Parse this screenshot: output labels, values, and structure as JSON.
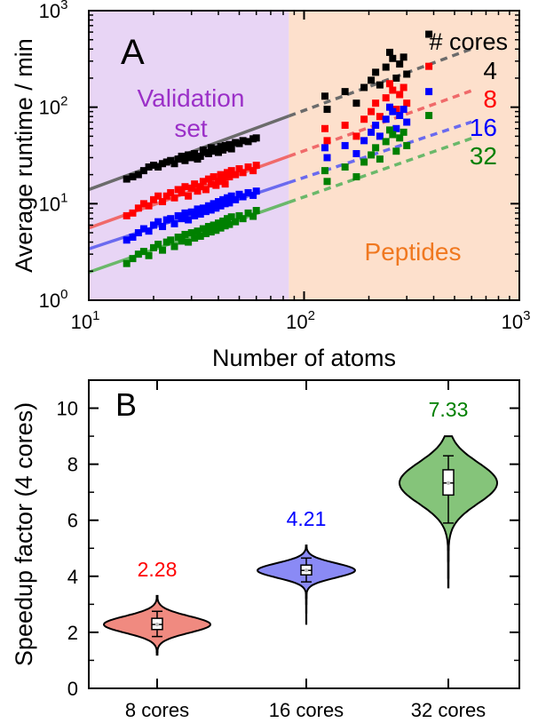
{
  "chart_data": [
    {
      "type": "scatter",
      "panel_label": "A",
      "xlabel": "Number of atoms",
      "ylabel": "Average runtime / min",
      "xscale": "log",
      "yscale": "log",
      "xlim": [
        10,
        1000
      ],
      "ylim": [
        1,
        1000
      ],
      "x_ticks": [
        {
          "label": "10",
          "sup": "1",
          "value": 10
        },
        {
          "label": "10",
          "sup": "2",
          "value": 100
        },
        {
          "label": "10",
          "sup": "3",
          "value": 1000
        }
      ],
      "y_ticks": [
        {
          "label": "10",
          "sup": "0",
          "value": 1
        },
        {
          "label": "10",
          "sup": "1",
          "value": 10
        },
        {
          "label": "10",
          "sup": "2",
          "value": 100
        },
        {
          "label": "10",
          "sup": "3",
          "value": 1000
        }
      ],
      "regions": [
        {
          "label_lines": [
            "Validation",
            "set"
          ],
          "x_from": 10,
          "x_to": 85,
          "color": "#e8d5f5",
          "label_color": "#9b30c8"
        },
        {
          "label_lines": [
            "Peptides"
          ],
          "x_from": 85,
          "x_to": 1000,
          "color": "#fde0cc",
          "label_color": "#f07820"
        }
      ],
      "legend_title": "# cores",
      "legend_position": "top-right",
      "fit_break_x": 85,
      "series": [
        {
          "name": "4",
          "color": "#000000",
          "line_color": "#6b6b6b",
          "fit": {
            "a": 14.0,
            "b": 0.82
          },
          "validation_points": [
            [
              15,
              18
            ],
            [
              16,
              19
            ],
            [
              17,
              20
            ],
            [
              18,
              22
            ],
            [
              19,
              24
            ],
            [
              20,
              25
            ],
            [
              21,
              24
            ],
            [
              22,
              26
            ],
            [
              23,
              27
            ],
            [
              24,
              28
            ],
            [
              25,
              26
            ],
            [
              26,
              29
            ],
            [
              27,
              31
            ],
            [
              28,
              28
            ],
            [
              29,
              32
            ],
            [
              30,
              30
            ],
            [
              31,
              33
            ],
            [
              32,
              29
            ],
            [
              33,
              31
            ],
            [
              34,
              36
            ],
            [
              35,
              34
            ],
            [
              36,
              33
            ],
            [
              37,
              38
            ],
            [
              38,
              35
            ],
            [
              39,
              37
            ],
            [
              40,
              34
            ],
            [
              41,
              39
            ],
            [
              42,
              36
            ],
            [
              43,
              40
            ],
            [
              44,
              38
            ],
            [
              45,
              41
            ],
            [
              46,
              37
            ],
            [
              48,
              43
            ],
            [
              50,
              42
            ],
            [
              52,
              45
            ],
            [
              55,
              44
            ],
            [
              58,
              47
            ],
            [
              60,
              48
            ]
          ],
          "peptide_points": [
            [
              125,
              130
            ],
            [
              128,
              95
            ],
            [
              155,
              145
            ],
            [
              175,
              110
            ],
            [
              190,
              160
            ],
            [
              205,
              190
            ],
            [
              215,
              230
            ],
            [
              225,
              170
            ],
            [
              240,
              260
            ],
            [
              250,
              370
            ],
            [
              258,
              320
            ],
            [
              268,
              200
            ],
            [
              278,
              280
            ],
            [
              290,
              330
            ],
            [
              300,
              220
            ],
            [
              380,
              570
            ]
          ]
        },
        {
          "name": "8",
          "color": "#ff0000",
          "line_color": "#f06a6a",
          "fit": {
            "a": 5.6,
            "b": 0.8
          },
          "validation_points": [
            [
              15,
              7.5
            ],
            [
              16,
              8
            ],
            [
              17,
              9
            ],
            [
              18,
              10
            ],
            [
              19,
              9.5
            ],
            [
              20,
              11
            ],
            [
              21,
              12
            ],
            [
              22,
              10.5
            ],
            [
              23,
              12
            ],
            [
              24,
              13
            ],
            [
              25,
              11.5
            ],
            [
              26,
              14
            ],
            [
              27,
              13
            ],
            [
              28,
              15
            ],
            [
              29,
              12
            ],
            [
              30,
              14.5
            ],
            [
              31,
              16
            ],
            [
              32,
              13.5
            ],
            [
              33,
              15
            ],
            [
              34,
              17
            ],
            [
              35,
              14
            ],
            [
              36,
              18
            ],
            [
              37,
              16
            ],
            [
              38,
              19
            ],
            [
              39,
              15.5
            ],
            [
              40,
              17
            ],
            [
              41,
              20
            ],
            [
              42,
              18
            ],
            [
              43,
              16
            ],
            [
              44,
              21
            ],
            [
              45,
              19
            ],
            [
              46,
              22
            ],
            [
              48,
              20
            ],
            [
              50,
              23
            ],
            [
              52,
              21
            ],
            [
              55,
              24
            ],
            [
              58,
              22
            ],
            [
              60,
              25
            ]
          ],
          "peptide_points": [
            [
              125,
              60
            ],
            [
              128,
              45
            ],
            [
              155,
              65
            ],
            [
              175,
              50
            ],
            [
              190,
              75
            ],
            [
              205,
              90
            ],
            [
              215,
              110
            ],
            [
              225,
              80
            ],
            [
              240,
              125
            ],
            [
              250,
              175
            ],
            [
              258,
              150
            ],
            [
              268,
              95
            ],
            [
              278,
              135
            ],
            [
              290,
              160
            ],
            [
              300,
              110
            ],
            [
              380,
              265
            ]
          ]
        },
        {
          "name": "16",
          "color": "#0000ff",
          "line_color": "#6a6aef",
          "fit": {
            "a": 3.4,
            "b": 0.74
          },
          "validation_points": [
            [
              15,
              4.2
            ],
            [
              16,
              4.5
            ],
            [
              17,
              5
            ],
            [
              18,
              5.5
            ],
            [
              19,
              5.2
            ],
            [
              20,
              6
            ],
            [
              21,
              6.5
            ],
            [
              22,
              5.8
            ],
            [
              23,
              6.8
            ],
            [
              24,
              7
            ],
            [
              25,
              6.2
            ],
            [
              26,
              7.5
            ],
            [
              27,
              7
            ],
            [
              28,
              8
            ],
            [
              29,
              6.8
            ],
            [
              30,
              8.2
            ],
            [
              31,
              7.5
            ],
            [
              32,
              8.8
            ],
            [
              33,
              7.8
            ],
            [
              34,
              9
            ],
            [
              35,
              8.3
            ],
            [
              36,
              9.5
            ],
            [
              37,
              8.6
            ],
            [
              38,
              10
            ],
            [
              39,
              9
            ],
            [
              40,
              10.5
            ],
            [
              41,
              9.5
            ],
            [
              42,
              11
            ],
            [
              43,
              10
            ],
            [
              44,
              11.5
            ],
            [
              45,
              10.2
            ],
            [
              46,
              12
            ],
            [
              48,
              11
            ],
            [
              50,
              12.5
            ],
            [
              52,
              11.8
            ],
            [
              55,
              13
            ],
            [
              58,
              12.2
            ],
            [
              60,
              13.5
            ]
          ],
          "peptide_points": [
            [
              125,
              38
            ],
            [
              128,
              30
            ],
            [
              155,
              40
            ],
            [
              175,
              33
            ],
            [
              190,
              45
            ],
            [
              205,
              55
            ],
            [
              215,
              65
            ],
            [
              225,
              50
            ],
            [
              240,
              75
            ],
            [
              250,
              100
            ],
            [
              258,
              90
            ],
            [
              268,
              60
            ],
            [
              278,
              82
            ],
            [
              290,
              95
            ],
            [
              300,
              70
            ],
            [
              380,
              145
            ]
          ]
        },
        {
          "name": "32",
          "color": "#008000",
          "line_color": "#6ab86a",
          "fit": {
            "a": 1.95,
            "b": 0.78
          },
          "validation_points": [
            [
              15,
              2.4
            ],
            [
              16,
              2.7
            ],
            [
              17,
              3
            ],
            [
              18,
              3.2
            ],
            [
              19,
              2.9
            ],
            [
              20,
              3.5
            ],
            [
              21,
              3.8
            ],
            [
              22,
              3.3
            ],
            [
              23,
              4
            ],
            [
              24,
              4.2
            ],
            [
              25,
              3.6
            ],
            [
              26,
              4.5
            ],
            [
              27,
              4.1
            ],
            [
              28,
              4.8
            ],
            [
              29,
              4
            ],
            [
              30,
              5
            ],
            [
              31,
              4.4
            ],
            [
              32,
              5.2
            ],
            [
              33,
              4.6
            ],
            [
              34,
              5.5
            ],
            [
              35,
              4.9
            ],
            [
              36,
              5.8
            ],
            [
              37,
              5.1
            ],
            [
              38,
              6
            ],
            [
              39,
              5.3
            ],
            [
              40,
              6.3
            ],
            [
              41,
              5.6
            ],
            [
              42,
              6.6
            ],
            [
              43,
              5.9
            ],
            [
              44,
              7
            ],
            [
              45,
              6.1
            ],
            [
              46,
              7.3
            ],
            [
              48,
              6.5
            ],
            [
              50,
              7.5
            ],
            [
              52,
              7
            ],
            [
              55,
              8
            ],
            [
              58,
              7.4
            ],
            [
              60,
              8.5
            ]
          ],
          "peptide_points": [
            [
              125,
              22
            ],
            [
              128,
              17
            ],
            [
              155,
              24
            ],
            [
              175,
              19
            ],
            [
              190,
              27
            ],
            [
              205,
              32
            ],
            [
              215,
              38
            ],
            [
              225,
              29
            ],
            [
              240,
              44
            ],
            [
              250,
              58
            ],
            [
              258,
              52
            ],
            [
              268,
              35
            ],
            [
              278,
              48
            ],
            [
              290,
              55
            ],
            [
              300,
              40
            ],
            [
              380,
              82
            ]
          ]
        }
      ]
    },
    {
      "type": "violin",
      "panel_label": "B",
      "ylabel": "Speedup factor (4 cores)",
      "ylim": [
        0,
        11
      ],
      "y_ticks": [
        0,
        2,
        4,
        6,
        8,
        10
      ],
      "categories": [
        "8 cores",
        "16 cores",
        "32 cores"
      ],
      "series": [
        {
          "name": "8 cores",
          "mean_label": "2.28",
          "color": "#f08a80",
          "text_color": "#ff0000",
          "median": 2.28,
          "q1": 2.1,
          "q3": 2.5,
          "whisker_low": 1.85,
          "whisker_high": 2.75,
          "min": 1.2,
          "max": 3.3
        },
        {
          "name": "16 cores",
          "mean_label": "4.21",
          "color": "#8a8af5",
          "text_color": "#0000ff",
          "median": 4.21,
          "q1": 4.05,
          "q3": 4.4,
          "whisker_low": 3.8,
          "whisker_high": 4.65,
          "min": 2.3,
          "max": 5.1
        },
        {
          "name": "32 cores",
          "mean_label": "7.33",
          "color": "#85c47a",
          "text_color": "#008000",
          "median": 7.33,
          "q1": 6.9,
          "q3": 7.8,
          "whisker_low": 5.9,
          "whisker_high": 8.3,
          "min": 3.6,
          "max": 9.0
        }
      ]
    }
  ]
}
